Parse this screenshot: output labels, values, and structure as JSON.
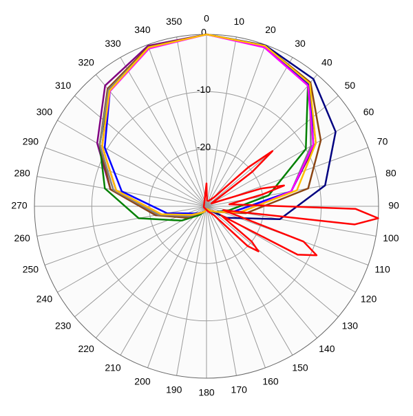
{
  "chart_data": {
    "type": "polar",
    "thetaticks": [
      0,
      10,
      20,
      30,
      40,
      50,
      60,
      70,
      80,
      90,
      100,
      110,
      120,
      130,
      140,
      150,
      160,
      170,
      180,
      190,
      200,
      210,
      220,
      230,
      240,
      250,
      260,
      270,
      280,
      290,
      300,
      310,
      320,
      330,
      340,
      350
    ],
    "rlim": [
      -30,
      0
    ],
    "rticks": [
      0,
      -10,
      -20
    ],
    "grid": true,
    "series": [
      {
        "color": "#000080",
        "theta": [
          0,
          20,
          40,
          60,
          80,
          100,
          120,
          140,
          160,
          180,
          200,
          220,
          240,
          260,
          280,
          300,
          320,
          340
        ],
        "values": [
          0,
          -0.1,
          -1,
          -4,
          -9,
          -17,
          -26,
          -29,
          -29.5,
          -29.5,
          -29,
          -28.5,
          -27,
          -22,
          -14,
          -9,
          -3.5,
          -0.4
        ]
      },
      {
        "color": "#800080",
        "theta": [
          0,
          20,
          40,
          60,
          80,
          100,
          120,
          140,
          160,
          180,
          200,
          220,
          240,
          260,
          280,
          300,
          320,
          340
        ],
        "values": [
          0,
          -0.3,
          -2.2,
          -8,
          -15,
          -25,
          -28,
          -29,
          -29.5,
          -29.5,
          -29,
          -28.5,
          -27,
          -21,
          -13,
          -8,
          -2.5,
          -0.2
        ]
      },
      {
        "color": "#008000",
        "theta": [
          0,
          20,
          40,
          60,
          80,
          100,
          120,
          140,
          160,
          180,
          200,
          220,
          240,
          260,
          280,
          300,
          320,
          340
        ],
        "values": [
          0,
          -0.3,
          -2.5,
          -10,
          -19,
          -26,
          -28,
          -29,
          -29.5,
          -29.5,
          -29,
          -28,
          -25,
          -18,
          -12,
          -8.5,
          -3.5,
          -0.5
        ]
      },
      {
        "color": "#8b4513",
        "theta": [
          0,
          20,
          40,
          60,
          80,
          100,
          120,
          140,
          160,
          180,
          200,
          220,
          240,
          260,
          280,
          300,
          320,
          340
        ],
        "values": [
          0,
          -0.2,
          -1.8,
          -7,
          -12,
          -23,
          -28,
          -29,
          -29.5,
          -29.5,
          -29,
          -28.5,
          -26,
          -21,
          -13,
          -8.5,
          -3.2,
          -0.4
        ]
      },
      {
        "color": "#808080",
        "theta": [
          0,
          20,
          40,
          60,
          80,
          100,
          120,
          140,
          160,
          180,
          200,
          220,
          240,
          260,
          280,
          300,
          320,
          340
        ],
        "values": [
          0,
          -0.4,
          -2,
          -9,
          -15,
          -24,
          -28,
          -29,
          -29.5,
          -29.5,
          -29,
          -28.5,
          -26.5,
          -21.5,
          -13.5,
          -8.5,
          -3.4,
          -0.6
        ]
      },
      {
        "color": "#0000ff",
        "theta": [
          0,
          20,
          40,
          60,
          80,
          100,
          120,
          140,
          160,
          180,
          200,
          220,
          240,
          260,
          280,
          300,
          320,
          340
        ],
        "values": [
          0,
          -0.3,
          -2.1,
          -8.5,
          -15,
          -25,
          -28,
          -29,
          -29.5,
          -29.5,
          -29,
          -28.5,
          -27.5,
          -23,
          -15,
          -9.5,
          -3.8,
          -0.5
        ]
      },
      {
        "color": "#ff00ff",
        "theta": [
          0,
          20,
          40,
          60,
          80,
          100,
          120,
          140,
          160,
          180,
          200,
          220,
          240,
          260,
          280,
          300,
          320,
          340
        ],
        "values": [
          0,
          -0.5,
          -2.5,
          -8.5,
          -15,
          -24,
          -28,
          -29,
          -29.5,
          -29.5,
          -29,
          -28.5,
          -27,
          -22,
          -14,
          -9,
          -3.8,
          -0.7
        ]
      },
      {
        "color": "#ffc000",
        "theta": [
          0,
          20,
          40,
          60,
          80,
          100,
          120,
          140,
          160,
          180,
          200,
          220,
          240,
          260,
          280,
          300,
          320,
          340
        ],
        "values": [
          0,
          -0.2,
          -2,
          -8,
          -14,
          -24,
          -28,
          -29,
          -29.5,
          -29.5,
          -29,
          -28.5,
          -27,
          -22,
          -14,
          -9,
          -3.7,
          -0.5
        ]
      },
      {
        "color": "#ff0000",
        "theta": [
          0,
          5,
          20,
          40,
          47,
          50,
          53,
          60,
          72,
          75,
          78,
          85,
          91,
          94,
          97,
          103,
          110,
          114,
          118,
          122,
          128,
          131,
          134,
          140,
          160,
          200,
          250,
          300,
          340
        ],
        "values": [
          -26,
          -29,
          -29,
          -28,
          -20,
          -15,
          -20,
          -29,
          -20,
          -16,
          -20,
          -26,
          -4,
          0,
          -4,
          -27,
          -12,
          -9,
          -12,
          -27,
          -20,
          -18,
          -20,
          -28,
          -29,
          -29.5,
          -29.5,
          -29.5,
          -29
        ]
      }
    ]
  }
}
